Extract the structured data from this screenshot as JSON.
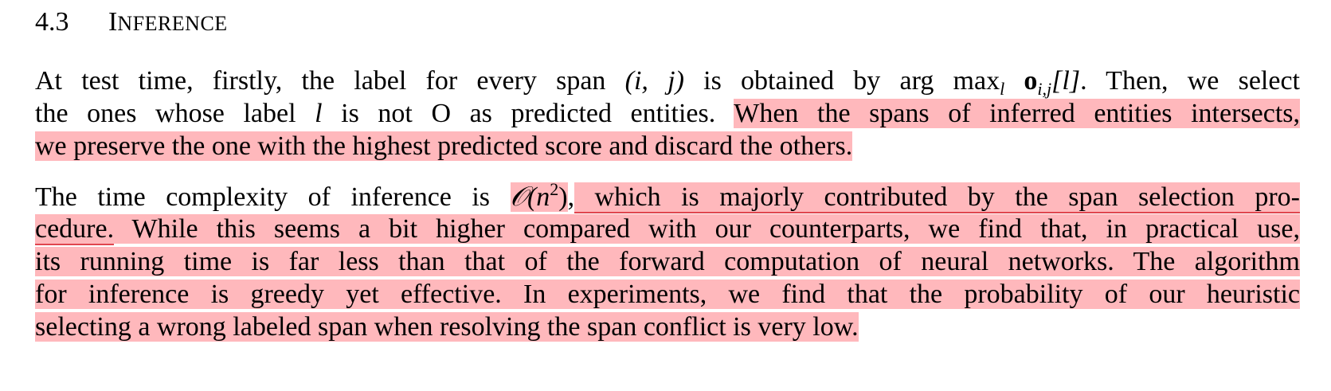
{
  "section": {
    "number": "4.3",
    "title_first": "I",
    "title_rest": "NFERENCE"
  },
  "para1": {
    "l1_a": "At test time, firstly, the label for every span ",
    "l1_span": "(i, j)",
    "l1_b": " is obtained by ",
    "l1_argmax": "arg max",
    "l1_sub_l": "l",
    "l1_o": "o",
    "l1_sub_ij": "i,j",
    "l1_idx": "[l]",
    "l1_c": ". Then, we select",
    "l2_a": "the ones whose label ",
    "l2_l": "l",
    "l2_b": " is not O as predicted entities. ",
    "l2_hl": "When the spans of inferred entities intersects,",
    "l3_hl": "we preserve the one with the highest predicted score and discard the others."
  },
  "para2": {
    "l1_a": "The time complexity of inference is ",
    "l1_O": "𝒪",
    "l1_n": "(n",
    "l1_sup": "2",
    "l1_close": ")",
    "l1_comma": ",",
    "l1_hl": " which is majorly contributed by the span selection pro-",
    "l2_hl_a": "cedure.",
    "l2_hl_b": " While this seems a bit higher compared with our counterparts, we find that, in practical use,",
    "l3_hl": "its running time is far less than that of the forward computation of neural networks. The algorithm",
    "l4_hl": "for inference is greedy yet effective. In experiments, we find that the probability of our heuristic",
    "l5_hl": "selecting a wrong labeled span when resolving the span conflict is very low."
  }
}
